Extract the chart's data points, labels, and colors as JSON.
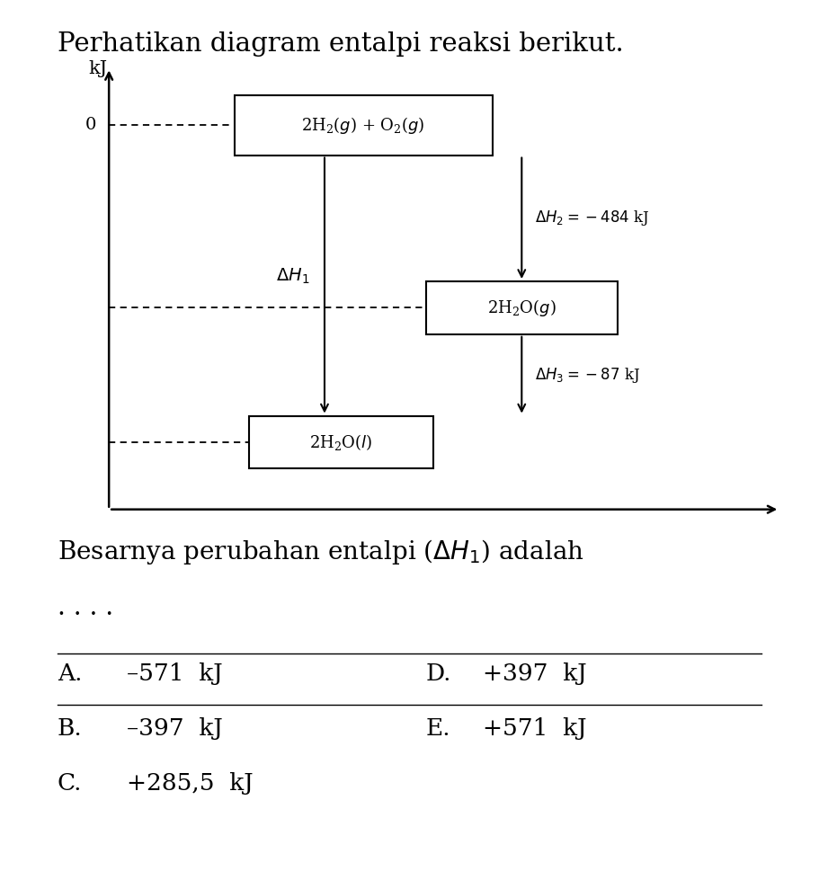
{
  "title": "Perhatikan diagram entalpi reaksi berikut.",
  "title_fontsize": 21,
  "background_color": "#ffffff",
  "question_text": "Besarnya perubahan entalpi (",
  "question_dH": "ΔH₁",
  "question_end": ") adalah",
  "dots": ". . . .",
  "options_left": [
    [
      "A.",
      "–571  kJ"
    ],
    [
      "B.",
      "–397  kJ"
    ],
    [
      "C.",
      "+285,5  kJ"
    ]
  ],
  "options_right": [
    [
      "D.",
      "+397  kJ"
    ],
    [
      "E.",
      "+571  kJ"
    ]
  ],
  "box1_label": "$2H_2(g) + O_2(g)$",
  "box2_label": "$2H_2O(g)$",
  "box3_label": "$2H_2O(l)$",
  "dH2_label": "$\\Delta H_2 = -484$ kJ",
  "dH3_label": "$\\Delta H_3 = -87$ kJ",
  "dH1_label": "$\\Delta H_1$",
  "axis_label_kJ": "kJ",
  "axis_label_0": "0",
  "figsize": [
    9.11,
    9.89
  ],
  "dpi": 100
}
